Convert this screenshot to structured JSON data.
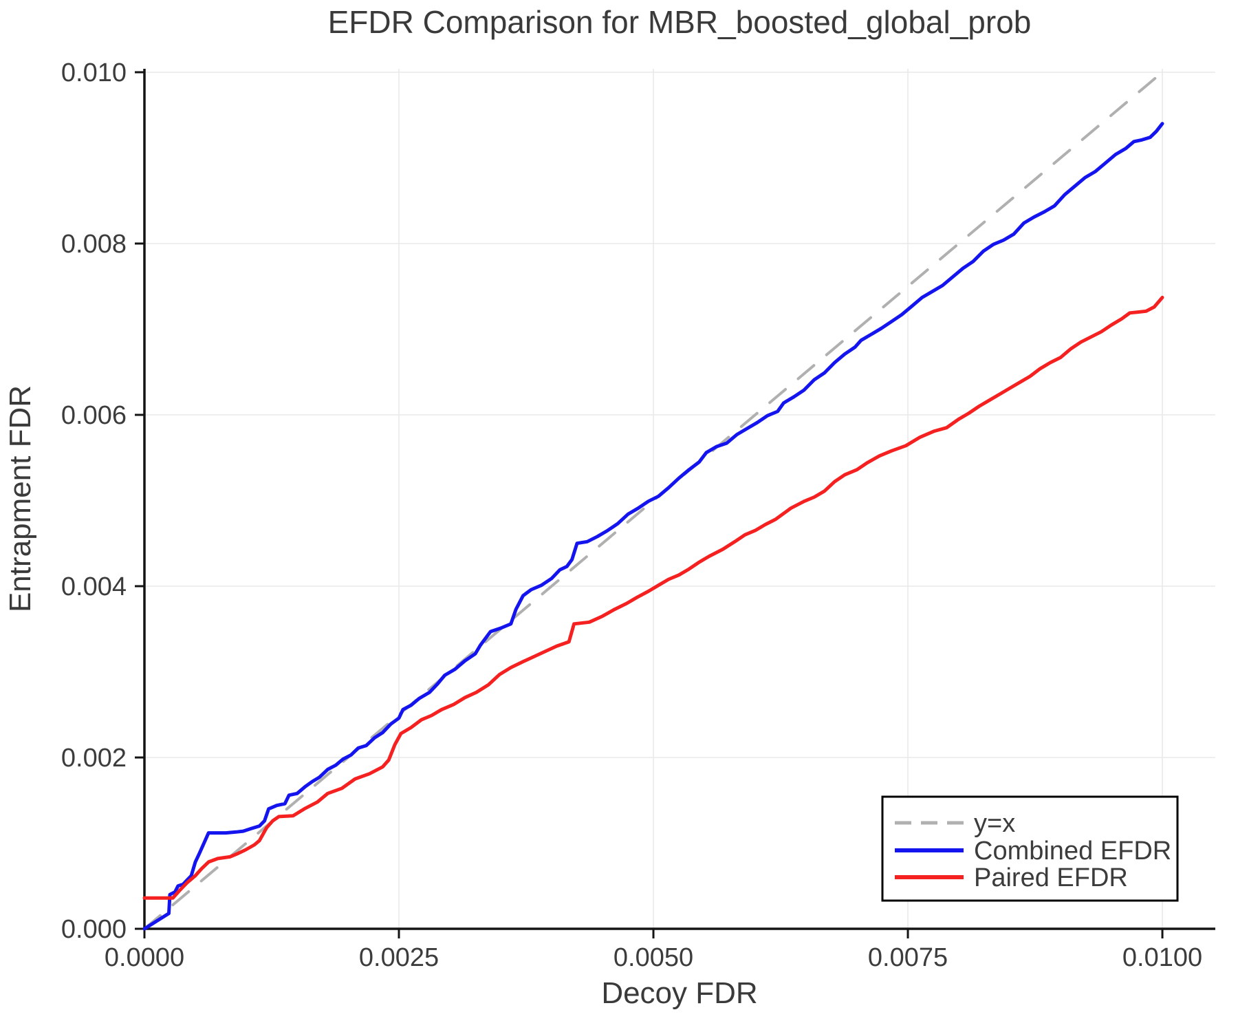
{
  "title": "EFDR Comparison for MBR_boosted_global_prob",
  "colors": {
    "background": "#ffffff",
    "grid": "#e8e8e8",
    "spine": "#141414",
    "tick_text": "#3c3c3c",
    "title_text": "#3a3a3a",
    "identity_line": "#b0b0b0",
    "combined_line": "#1414ef",
    "paired_line": "#f52020",
    "legend_border": "#000000",
    "legend_background": "#ffffff"
  },
  "chart_data": {
    "type": "line",
    "title": "EFDR Comparison for MBR_boosted_global_prob",
    "xlabel": "Decoy FDR",
    "ylabel": "Entrapment FDR",
    "xlim": [
      0,
      0.01052
    ],
    "ylim": [
      0,
      0.01004
    ],
    "grid": true,
    "legend_position": "lower right",
    "x_ticks": {
      "values": [
        0,
        0.0025,
        0.005,
        0.0075,
        0.01
      ],
      "labels": [
        "0.0000",
        "0.0025",
        "0.0050",
        "0.0075",
        "0.0100"
      ]
    },
    "y_ticks": {
      "values": [
        0,
        0.002,
        0.004,
        0.006,
        0.008,
        0.01
      ],
      "labels": [
        "0.000",
        "0.002",
        "0.004",
        "0.006",
        "0.008",
        "0.010"
      ]
    },
    "series": [
      {
        "name": "y=x",
        "style": "dashed",
        "color": "#b0b0b0",
        "width": 4,
        "points": [
          [
            0,
            0
          ],
          [
            0.01,
            0.01
          ]
        ]
      },
      {
        "name": "Combined EFDR",
        "style": "solid",
        "color": "#1414ef",
        "width": 5,
        "points": [
          [
            0.0,
            0.0
          ],
          [
            0.00012,
            9e-05
          ],
          [
            0.00024,
            0.00018
          ],
          [
            0.00025,
            0.0004
          ],
          [
            0.0003,
            0.00043
          ],
          [
            0.00033,
            0.0005
          ],
          [
            0.00038,
            0.00052
          ],
          [
            0.00042,
            0.00057
          ],
          [
            0.00046,
            0.00062
          ],
          [
            0.0005,
            0.00078
          ],
          [
            0.00054,
            0.00088
          ],
          [
            0.0006,
            0.00104
          ],
          [
            0.00063,
            0.00112
          ],
          [
            0.00072,
            0.00112
          ],
          [
            0.0008,
            0.00112
          ],
          [
            0.0009,
            0.00113
          ],
          [
            0.00097,
            0.00114
          ],
          [
            0.00105,
            0.00117
          ],
          [
            0.00113,
            0.0012
          ],
          [
            0.00118,
            0.00126
          ],
          [
            0.00122,
            0.0014
          ],
          [
            0.0013,
            0.00144
          ],
          [
            0.00138,
            0.00146
          ],
          [
            0.00142,
            0.00156
          ],
          [
            0.0015,
            0.00158
          ],
          [
            0.00158,
            0.00166
          ],
          [
            0.00165,
            0.00172
          ],
          [
            0.00172,
            0.00177
          ],
          [
            0.0018,
            0.00186
          ],
          [
            0.00188,
            0.00191
          ],
          [
            0.00195,
            0.00198
          ],
          [
            0.00203,
            0.00203
          ],
          [
            0.0021,
            0.00211
          ],
          [
            0.00218,
            0.00214
          ],
          [
            0.00226,
            0.00223
          ],
          [
            0.00234,
            0.00229
          ],
          [
            0.00242,
            0.00239
          ],
          [
            0.0025,
            0.00246
          ],
          [
            0.00254,
            0.00256
          ],
          [
            0.00262,
            0.00261
          ],
          [
            0.0027,
            0.00269
          ],
          [
            0.0028,
            0.00276
          ],
          [
            0.00288,
            0.00286
          ],
          [
            0.00295,
            0.00296
          ],
          [
            0.00305,
            0.00303
          ],
          [
            0.00315,
            0.00313
          ],
          [
            0.00325,
            0.00321
          ],
          [
            0.0033,
            0.00331
          ],
          [
            0.0034,
            0.00347
          ],
          [
            0.0035,
            0.00351
          ],
          [
            0.0036,
            0.00356
          ],
          [
            0.00365,
            0.00373
          ],
          [
            0.00372,
            0.00389
          ],
          [
            0.0038,
            0.00396
          ],
          [
            0.0039,
            0.00401
          ],
          [
            0.004,
            0.00409
          ],
          [
            0.00408,
            0.00419
          ],
          [
            0.00415,
            0.00423
          ],
          [
            0.0042,
            0.00431
          ],
          [
            0.00425,
            0.0045
          ],
          [
            0.00435,
            0.00452
          ],
          [
            0.00445,
            0.00458
          ],
          [
            0.00455,
            0.00465
          ],
          [
            0.00465,
            0.00473
          ],
          [
            0.00475,
            0.00484
          ],
          [
            0.00485,
            0.00491
          ],
          [
            0.00495,
            0.00499
          ],
          [
            0.00505,
            0.00505
          ],
          [
            0.00515,
            0.00515
          ],
          [
            0.00525,
            0.00526
          ],
          [
            0.00535,
            0.00536
          ],
          [
            0.00545,
            0.00545
          ],
          [
            0.00552,
            0.00556
          ],
          [
            0.00562,
            0.00563
          ],
          [
            0.00572,
            0.00567
          ],
          [
            0.00582,
            0.00577
          ],
          [
            0.00592,
            0.00584
          ],
          [
            0.00602,
            0.00591
          ],
          [
            0.00612,
            0.00599
          ],
          [
            0.00622,
            0.00604
          ],
          [
            0.00628,
            0.00614
          ],
          [
            0.00638,
            0.00621
          ],
          [
            0.00648,
            0.00629
          ],
          [
            0.00658,
            0.00641
          ],
          [
            0.00668,
            0.00649
          ],
          [
            0.00678,
            0.00661
          ],
          [
            0.00688,
            0.00671
          ],
          [
            0.00698,
            0.00679
          ],
          [
            0.00704,
            0.00687
          ],
          [
            0.00714,
            0.00694
          ],
          [
            0.00724,
            0.00701
          ],
          [
            0.00734,
            0.00709
          ],
          [
            0.00744,
            0.00717
          ],
          [
            0.00754,
            0.00727
          ],
          [
            0.00764,
            0.00737
          ],
          [
            0.00774,
            0.00744
          ],
          [
            0.00784,
            0.00751
          ],
          [
            0.00794,
            0.00761
          ],
          [
            0.00804,
            0.00771
          ],
          [
            0.00814,
            0.00779
          ],
          [
            0.00824,
            0.00791
          ],
          [
            0.00834,
            0.00799
          ],
          [
            0.00844,
            0.00804
          ],
          [
            0.00854,
            0.00811
          ],
          [
            0.00864,
            0.00824
          ],
          [
            0.00874,
            0.00831
          ],
          [
            0.00884,
            0.00837
          ],
          [
            0.00894,
            0.00844
          ],
          [
            0.00904,
            0.00857
          ],
          [
            0.00914,
            0.00867
          ],
          [
            0.00924,
            0.00877
          ],
          [
            0.00934,
            0.00884
          ],
          [
            0.00944,
            0.00894
          ],
          [
            0.00954,
            0.00904
          ],
          [
            0.00964,
            0.00911
          ],
          [
            0.00972,
            0.00919
          ],
          [
            0.0098,
            0.00921
          ],
          [
            0.00988,
            0.00924
          ],
          [
            0.00994,
            0.00931
          ],
          [
            0.01,
            0.0094
          ]
        ]
      },
      {
        "name": "Paired EFDR",
        "style": "solid",
        "color": "#f52020",
        "width": 5,
        "points": [
          [
            0.0,
            0.00036
          ],
          [
            0.00028,
            0.00036
          ],
          [
            0.00034,
            0.00044
          ],
          [
            0.00042,
            0.00054
          ],
          [
            0.0005,
            0.00062
          ],
          [
            0.00056,
            0.0007
          ],
          [
            0.00063,
            0.00078
          ],
          [
            0.00072,
            0.00082
          ],
          [
            0.00084,
            0.00084
          ],
          [
            0.00092,
            0.00088
          ],
          [
            0.00099,
            0.00092
          ],
          [
            0.00108,
            0.00098
          ],
          [
            0.00113,
            0.00103
          ],
          [
            0.0012,
            0.00118
          ],
          [
            0.00126,
            0.00126
          ],
          [
            0.00132,
            0.00131
          ],
          [
            0.00146,
            0.00132
          ],
          [
            0.00157,
            0.0014
          ],
          [
            0.0017,
            0.00148
          ],
          [
            0.0018,
            0.00158
          ],
          [
            0.00194,
            0.00164
          ],
          [
            0.00207,
            0.00175
          ],
          [
            0.00221,
            0.00181
          ],
          [
            0.00234,
            0.00189
          ],
          [
            0.0024,
            0.00197
          ],
          [
            0.00246,
            0.00215
          ],
          [
            0.00252,
            0.00228
          ],
          [
            0.00262,
            0.00235
          ],
          [
            0.00272,
            0.00244
          ],
          [
            0.00282,
            0.00249
          ],
          [
            0.00292,
            0.00256
          ],
          [
            0.00304,
            0.00262
          ],
          [
            0.00315,
            0.0027
          ],
          [
            0.00326,
            0.00276
          ],
          [
            0.00338,
            0.00285
          ],
          [
            0.00349,
            0.00297
          ],
          [
            0.0036,
            0.00305
          ],
          [
            0.00372,
            0.00312
          ],
          [
            0.00383,
            0.00318
          ],
          [
            0.00394,
            0.00324
          ],
          [
            0.00405,
            0.0033
          ],
          [
            0.00417,
            0.00335
          ],
          [
            0.00422,
            0.00356
          ],
          [
            0.00437,
            0.00358
          ],
          [
            0.0045,
            0.00365
          ],
          [
            0.00462,
            0.00373
          ],
          [
            0.00474,
            0.0038
          ],
          [
            0.00484,
            0.00387
          ],
          [
            0.00495,
            0.00394
          ],
          [
            0.00505,
            0.00401
          ],
          [
            0.00515,
            0.00408
          ],
          [
            0.00525,
            0.00413
          ],
          [
            0.00535,
            0.0042
          ],
          [
            0.00545,
            0.00428
          ],
          [
            0.00555,
            0.00435
          ],
          [
            0.00568,
            0.00443
          ],
          [
            0.0058,
            0.00452
          ],
          [
            0.0059,
            0.0046
          ],
          [
            0.006,
            0.00465
          ],
          [
            0.0061,
            0.00472
          ],
          [
            0.0062,
            0.00478
          ],
          [
            0.00635,
            0.00491
          ],
          [
            0.00648,
            0.00499
          ],
          [
            0.00658,
            0.00504
          ],
          [
            0.00668,
            0.00511
          ],
          [
            0.00678,
            0.00522
          ],
          [
            0.00688,
            0.0053
          ],
          [
            0.007,
            0.00536
          ],
          [
            0.0071,
            0.00544
          ],
          [
            0.00722,
            0.00552
          ],
          [
            0.00734,
            0.00558
          ],
          [
            0.00748,
            0.00564
          ],
          [
            0.00762,
            0.00574
          ],
          [
            0.00776,
            0.00581
          ],
          [
            0.00788,
            0.00585
          ],
          [
            0.008,
            0.00595
          ],
          [
            0.0081,
            0.00602
          ],
          [
            0.0082,
            0.0061
          ],
          [
            0.0083,
            0.00617
          ],
          [
            0.0084,
            0.00624
          ],
          [
            0.0085,
            0.00631
          ],
          [
            0.0086,
            0.00638
          ],
          [
            0.0087,
            0.00645
          ],
          [
            0.0088,
            0.00654
          ],
          [
            0.0089,
            0.00661
          ],
          [
            0.009,
            0.00667
          ],
          [
            0.0091,
            0.00677
          ],
          [
            0.0092,
            0.00685
          ],
          [
            0.0093,
            0.00691
          ],
          [
            0.0094,
            0.00697
          ],
          [
            0.0095,
            0.00705
          ],
          [
            0.0096,
            0.00712
          ],
          [
            0.00968,
            0.00719
          ],
          [
            0.00976,
            0.0072
          ],
          [
            0.00984,
            0.00721
          ],
          [
            0.00992,
            0.00726
          ],
          [
            0.01,
            0.00737
          ]
        ]
      }
    ]
  },
  "legend": {
    "entries": [
      "y=x",
      "Combined EFDR",
      "Paired EFDR"
    ]
  }
}
